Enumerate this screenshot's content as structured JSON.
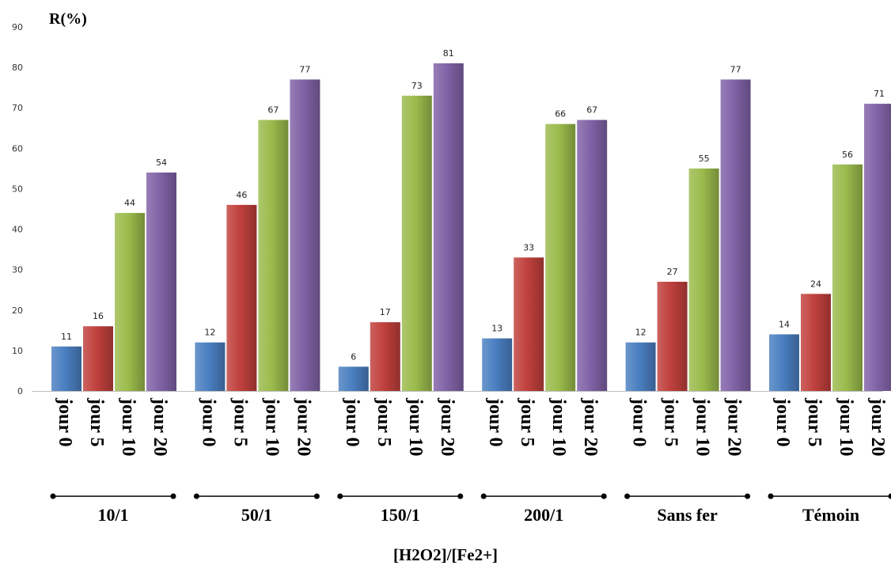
{
  "chart_data": {
    "type": "bar",
    "ylabel": "R(%)",
    "xlabel": "[H2O2]/[Fe2+]",
    "ylim": [
      0,
      90
    ],
    "yticks": [
      0,
      10,
      20,
      30,
      40,
      50,
      60,
      70,
      80,
      90
    ],
    "grid": false,
    "legend": "none",
    "groups": [
      "10/1",
      "50/1",
      "150/1",
      "200/1",
      "Sans fer",
      "Témoin"
    ],
    "categories": [
      "jour 0",
      "jour 5",
      "jour 10",
      "jour 20"
    ],
    "colors": [
      "#4a7fc1",
      "#c0403c",
      "#9bbb4c",
      "#8062a6"
    ],
    "values": [
      [
        11,
        16,
        44,
        54
      ],
      [
        12,
        46,
        67,
        77
      ],
      [
        6,
        17,
        73,
        81
      ],
      [
        13,
        33,
        66,
        67
      ],
      [
        12,
        27,
        55,
        77
      ],
      [
        14,
        24,
        56,
        71
      ]
    ]
  }
}
